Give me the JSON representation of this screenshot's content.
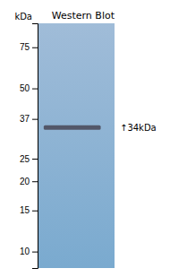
{
  "chart_data": {
    "type": "gel",
    "title": "Western Blot",
    "y_label": "kDa",
    "log": "y",
    "ylim": [
      8.5,
      95
    ],
    "yticks": [
      75,
      50,
      37,
      25,
      20,
      15,
      10
    ],
    "values": [
      34
    ],
    "value_labels": [
      "↑34kDa"
    ],
    "data_labels": true,
    "color": "#4a4a5a"
  }
}
